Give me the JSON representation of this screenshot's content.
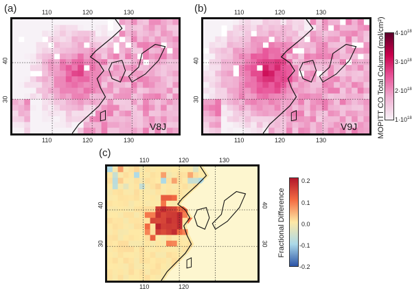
{
  "panels": {
    "a": {
      "label": "(a)",
      "version": "V8J"
    },
    "b": {
      "label": "(b)",
      "version": "V9J"
    },
    "c": {
      "label": "(c)"
    }
  },
  "map_ticks": {
    "lon": [
      "110",
      "120",
      "130"
    ],
    "lat": [
      "30",
      "40"
    ]
  },
  "colorbar_co": {
    "title": "MOPITT CO Total Column (mol/cm²)",
    "ticks": [
      {
        "base": "4·10",
        "exp": "18"
      },
      {
        "base": "3·10",
        "exp": "18"
      },
      {
        "base": "2·10",
        "exp": "18"
      },
      {
        "base": "1·10",
        "exp": "18"
      }
    ],
    "colors": [
      "#5c0029",
      "#c8004b",
      "#e8569a",
      "#f0b2d3",
      "#f7f2f7"
    ]
  },
  "colorbar_diff": {
    "title": "Fractional Difference",
    "ticks": [
      "0.2",
      "0.1",
      "0.0",
      "-0.1",
      "-0.2"
    ],
    "colors": [
      "#b2182b",
      "#f46d43",
      "#fee9a6",
      "#abd9e9",
      "#2c54a6"
    ]
  }
}
